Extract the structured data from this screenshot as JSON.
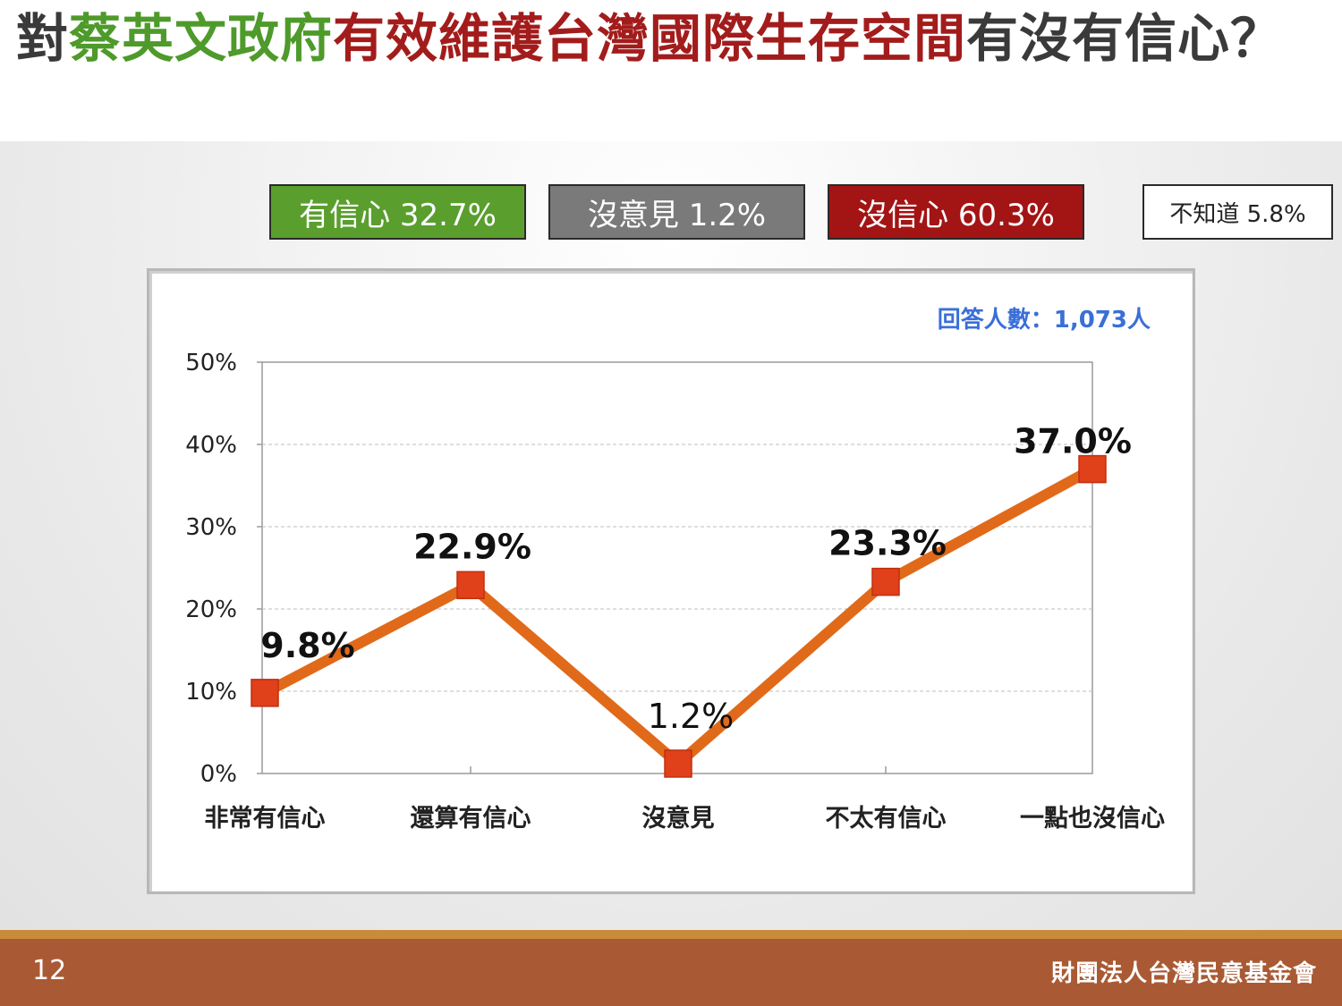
{
  "title": {
    "part1": "對",
    "part2": "蔡英文政府",
    "part3": "有效維護台灣國際生存空間",
    "part4": "有沒有信心？"
  },
  "summary": {
    "confident": "有信心 32.7%",
    "no_opinion": "沒意見 1.2%",
    "not_confident": "沒信心 60.3%",
    "dont_know": "不知道 5.8%"
  },
  "colors": {
    "green": "#5a9e2e",
    "gray": "#7a7a7a",
    "red": "#a31414",
    "line": "#e06a1a",
    "marker": "#e0401a",
    "sample_text": "#3a6fd8"
  },
  "chart_data": {
    "type": "line",
    "categories": [
      "非常有信心",
      "還算有信心",
      "沒意見",
      "不太有信心",
      "一點也沒信心"
    ],
    "values": [
      9.8,
      22.9,
      1.2,
      23.3,
      37.0
    ],
    "data_labels": [
      "9.8%",
      "22.9%",
      "1.2%",
      "23.3%",
      "37.0%"
    ],
    "ylim": [
      0,
      50
    ],
    "yticks": [
      0,
      10,
      20,
      30,
      40,
      50
    ],
    "ytick_labels": [
      "0%",
      "10%",
      "20%",
      "30%",
      "40%",
      "50%"
    ],
    "grid": true,
    "annotation": "回答人數：1,073人"
  },
  "footer": {
    "page_number": "12",
    "organization": "財團法人台灣民意基金會"
  }
}
